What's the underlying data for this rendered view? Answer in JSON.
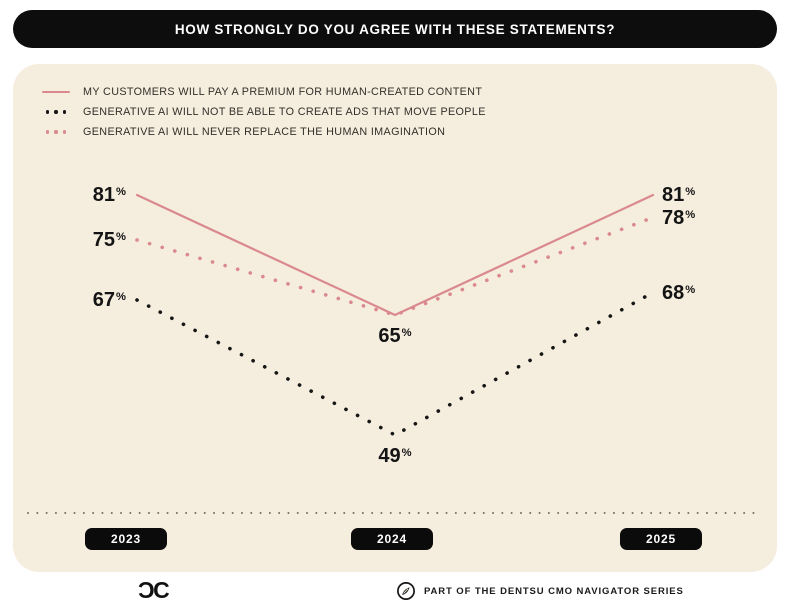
{
  "header": {
    "title": "HOW STRONGLY DO YOU AGREE WITH THESE STATEMENTS?"
  },
  "chart_data": {
    "type": "line",
    "title": "HOW STRONGLY DO YOU AGREE WITH THESE STATEMENTS?",
    "categories": [
      "2023",
      "2024",
      "2025"
    ],
    "unit": "%",
    "grid": false,
    "legend_position": "top-left",
    "ylim": [
      45,
      85
    ],
    "series": [
      {
        "name": "MY CUSTOMERS WILL PAY A PREMIUM FOR HUMAN-CREATED CONTENT",
        "style": "solid",
        "color": "#D9898F",
        "values": [
          81,
          65,
          81
        ],
        "labeled": [
          true,
          true,
          true
        ]
      },
      {
        "name": "GENERATIVE AI WILL NOT BE ABLE TO CREATE ADS THAT MOVE PEOPLE",
        "style": "dotted",
        "color": "#161616",
        "values": [
          67,
          49,
          68
        ],
        "labeled": [
          true,
          true,
          true
        ]
      },
      {
        "name": "GENERATIVE AI WILL NEVER REPLACE THE HUMAN IMAGINATION",
        "style": "dotted",
        "color": "#D9898F",
        "values": [
          75,
          65,
          78
        ],
        "labeled": [
          true,
          false,
          true
        ]
      }
    ]
  },
  "footer": {
    "logo_text": "ƆC",
    "series_label": "PART OF THE DENTSU CMO NAVIGATOR SERIES"
  },
  "colors": {
    "accent_pink": "#D9898F",
    "pill_black": "#0b0b0b",
    "panel_background": "#F5EDDE",
    "axis_dots": "#73705F"
  }
}
